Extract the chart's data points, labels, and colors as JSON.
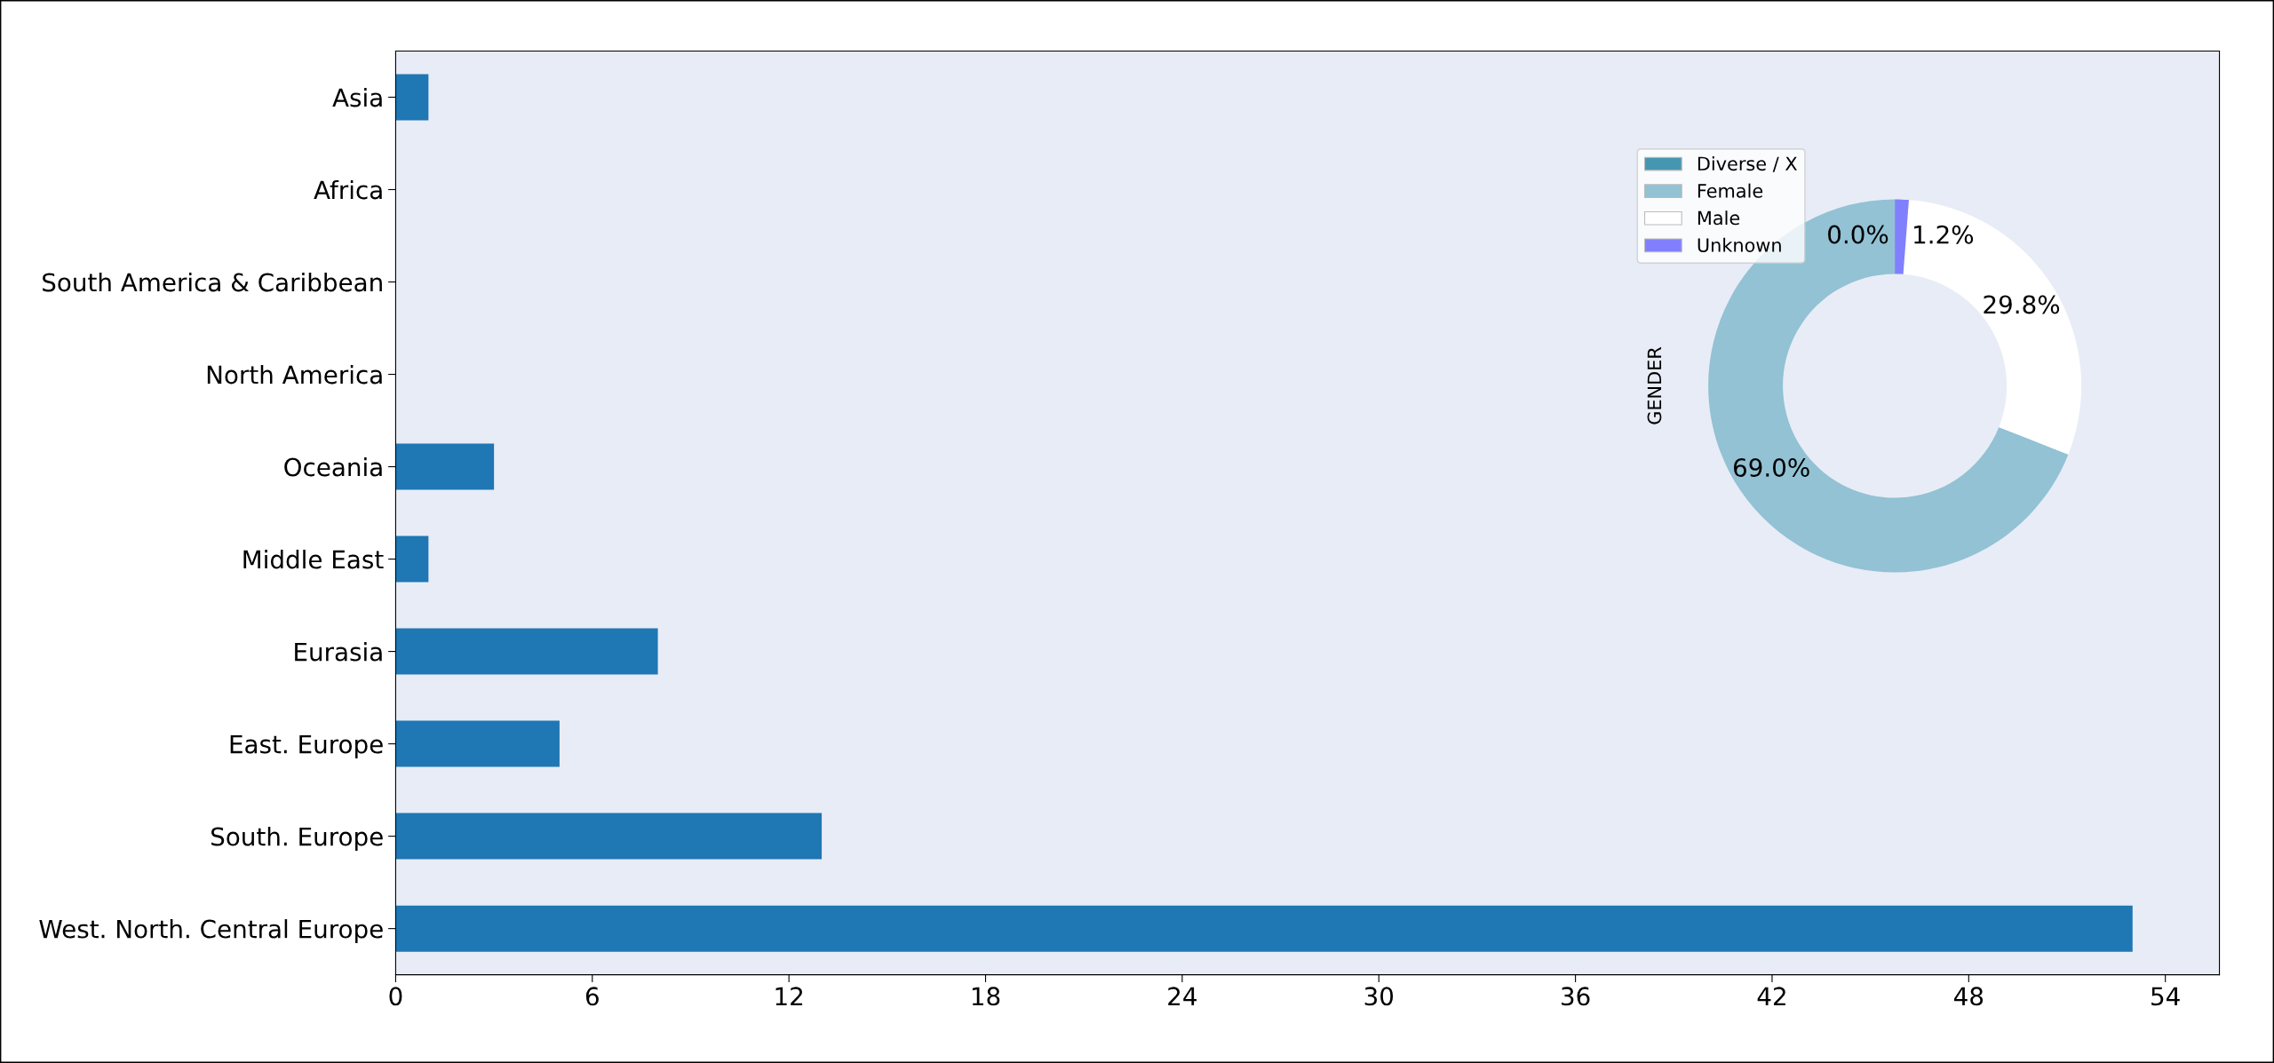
{
  "chart_data": [
    {
      "type": "bar",
      "orientation": "horizontal",
      "categories": [
        "Asia",
        "Africa",
        "South America & Caribbean",
        "North America",
        "Oceania",
        "Middle East",
        "Eurasia",
        "East. Europe",
        "South. Europe",
        "West. North. Central Europe"
      ],
      "values": [
        1,
        0,
        0,
        0,
        3,
        1,
        8,
        5,
        13,
        53
      ],
      "color": "#1f77b4",
      "xlim": [
        0,
        55.65
      ],
      "xticks": [
        0,
        6,
        12,
        18,
        24,
        30,
        36,
        42,
        48,
        54
      ],
      "grid": false
    },
    {
      "type": "donut",
      "ylabel": "GENDER",
      "categories": [
        "Diverse / X",
        "Female",
        "Male",
        "Unknown"
      ],
      "values": [
        0.0,
        69.0,
        29.8,
        1.2
      ],
      "colors": [
        "#4596b0",
        "#92c2d4",
        "#ffffff",
        "#8080ff"
      ],
      "value_labels": [
        "0.0%",
        "69.0%",
        "29.8%",
        "1.2%"
      ],
      "legend": "top left"
    }
  ]
}
